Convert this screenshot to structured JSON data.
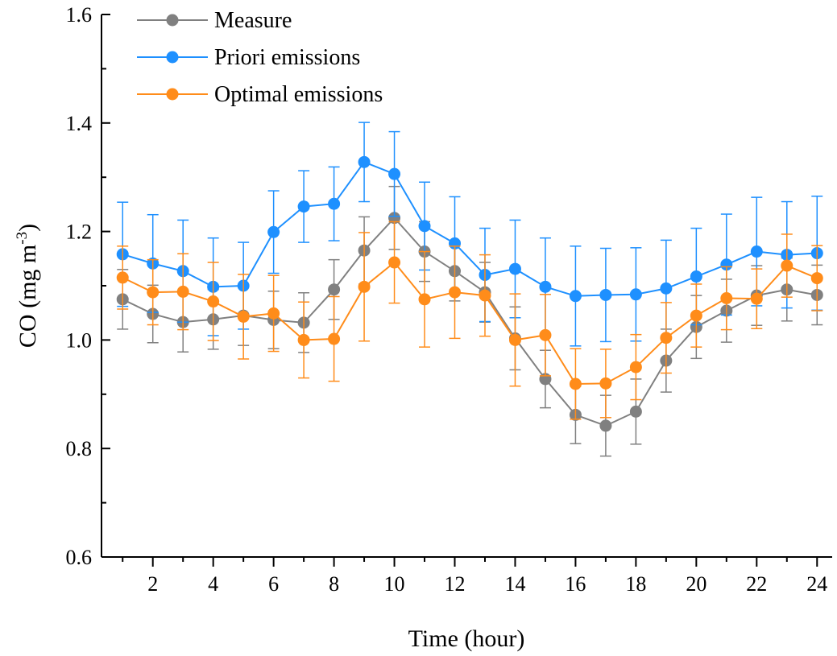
{
  "chart_data": {
    "type": "line",
    "xlabel": "Time (hour)",
    "ylabel": "CO (mg m",
    "ylabel_superscript": "-3",
    "ylabel_close": ")",
    "xlim": [
      0.3,
      24.5
    ],
    "ylim": [
      0.6,
      1.6
    ],
    "x_ticks": [
      2,
      4,
      6,
      8,
      10,
      12,
      14,
      16,
      18,
      20,
      22,
      24
    ],
    "x_tick_labels": [
      "2",
      "4",
      "6",
      "8",
      "10",
      "12",
      "14",
      "16",
      "18",
      "20",
      "22",
      "24"
    ],
    "y_ticks": [
      0.6,
      0.8,
      1.0,
      1.2,
      1.4,
      1.6
    ],
    "y_tick_labels": [
      "0.6",
      "0.8",
      "1.0",
      "1.2",
      "1.4",
      "1.6"
    ],
    "grid": false,
    "legend_position": "top-left",
    "x": [
      1,
      2,
      3,
      4,
      5,
      6,
      7,
      8,
      9,
      10,
      11,
      12,
      13,
      14,
      15,
      16,
      17,
      18,
      19,
      20,
      21,
      22,
      23,
      24
    ],
    "series": [
      {
        "name": "Measure",
        "color": "#808080",
        "values": [
          1.075,
          1.048,
          1.033,
          1.038,
          1.045,
          1.037,
          1.032,
          1.093,
          1.165,
          1.225,
          1.163,
          1.127,
          1.088,
          1.003,
          0.928,
          0.862,
          0.842,
          0.868,
          0.962,
          1.024,
          1.054,
          1.082,
          1.093,
          1.083
        ],
        "errors": [
          0.055,
          0.053,
          0.055,
          0.055,
          0.055,
          0.053,
          0.055,
          0.055,
          0.062,
          0.058,
          0.055,
          0.055,
          0.055,
          0.058,
          0.053,
          0.053,
          0.056,
          0.06,
          0.058,
          0.058,
          0.058,
          0.055,
          0.058,
          0.055
        ]
      },
      {
        "name": "Priori emissions",
        "color": "#1E90FF",
        "values": [
          1.158,
          1.141,
          1.127,
          1.098,
          1.1,
          1.199,
          1.246,
          1.251,
          1.328,
          1.306,
          1.21,
          1.178,
          1.12,
          1.131,
          1.098,
          1.081,
          1.083,
          1.084,
          1.095,
          1.117,
          1.139,
          1.163,
          1.157,
          1.16
        ],
        "errors": [
          0.096,
          0.09,
          0.094,
          0.09,
          0.08,
          0.076,
          0.066,
          0.068,
          0.073,
          0.078,
          0.081,
          0.086,
          0.086,
          0.09,
          0.09,
          0.092,
          0.086,
          0.086,
          0.089,
          0.089,
          0.093,
          0.1,
          0.098,
          0.105
        ]
      },
      {
        "name": "Optimal emissions",
        "color": "#FF8C1A",
        "values": [
          1.115,
          1.088,
          1.089,
          1.071,
          1.043,
          1.049,
          1.0,
          1.002,
          1.098,
          1.143,
          1.075,
          1.088,
          1.082,
          1.0,
          1.009,
          0.919,
          0.92,
          0.95,
          1.004,
          1.045,
          1.077,
          1.076,
          1.137,
          1.114
        ],
        "errors": [
          0.058,
          0.06,
          0.07,
          0.072,
          0.078,
          0.07,
          0.07,
          0.078,
          0.1,
          0.075,
          0.088,
          0.085,
          0.075,
          0.085,
          0.075,
          0.065,
          0.063,
          0.06,
          0.065,
          0.058,
          0.058,
          0.055,
          0.058,
          0.06
        ]
      }
    ]
  }
}
